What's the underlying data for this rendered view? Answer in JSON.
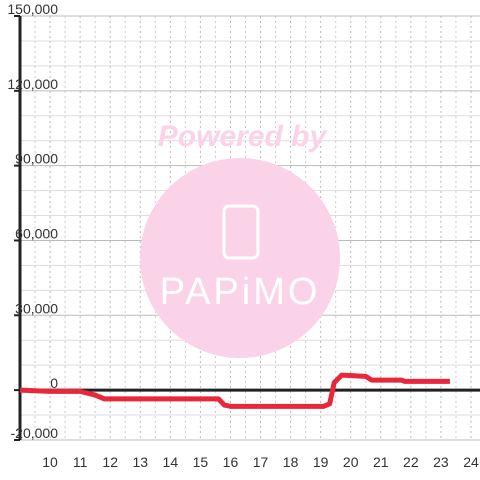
{
  "chart_data": {
    "type": "line",
    "watermark": {
      "title": "Powered by",
      "logo": "PAPiMO"
    },
    "xlim": [
      9,
      24.3
    ],
    "xticks": [
      10,
      11,
      12,
      13,
      14,
      15,
      16,
      17,
      18,
      19,
      20,
      21,
      22,
      23,
      24
    ],
    "minor_xticks": [
      9.5,
      10.5,
      11.5,
      12.5,
      13.5,
      14.5,
      15.5,
      16.5,
      17.5,
      18.5,
      19.5,
      20.5,
      21.5,
      22.5,
      23.5
    ],
    "ylim": [
      -20000,
      150000
    ],
    "yticks": [
      {
        "value": -20000,
        "label": "-20,000"
      },
      0,
      {
        "value": 30000,
        "label": "30,000"
      },
      {
        "value": 60000,
        "label": "60,000"
      },
      {
        "value": 90000,
        "label": "90,000"
      },
      {
        "value": 120000,
        "label": "120,000"
      },
      {
        "value": 150000,
        "label": "150,000"
      }
    ],
    "minor_yticks": [
      -10000,
      10000,
      20000,
      40000,
      50000,
      70000,
      80000,
      100000,
      110000,
      130000,
      140000
    ],
    "grid": true,
    "series": [
      {
        "color": "#e8273a",
        "x": [
          9,
          10,
          11,
          11.5,
          11.8,
          15.3,
          15.6,
          15.8,
          16,
          19.1,
          19.3,
          19.45,
          19.7,
          20.5,
          20.7,
          21.7,
          21.8,
          23.3
        ],
        "values": [
          0,
          -500,
          -500,
          -2000,
          -3500,
          -3500,
          -3500,
          -6000,
          -6500,
          -6500,
          -5500,
          3000,
          6000,
          5500,
          4000,
          4000,
          3500,
          3500
        ]
      }
    ]
  }
}
